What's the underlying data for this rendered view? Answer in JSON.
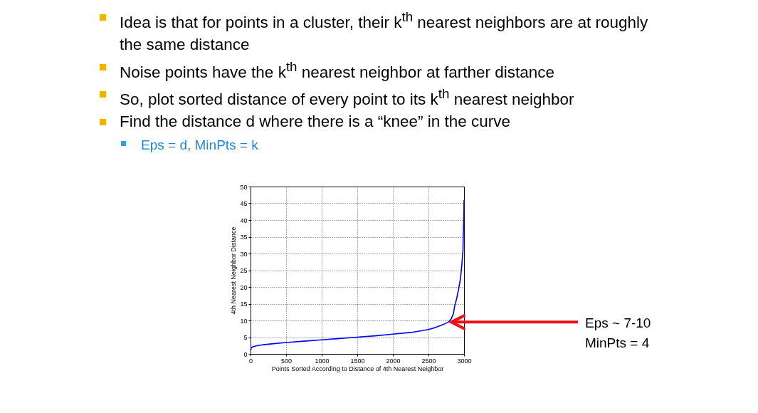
{
  "chart_data": {
    "type": "line",
    "xlabel": "Points Sorted According to Distance of 4th Nearest Neighbor",
    "ylabel": "4th Nearest Neighbor Distance",
    "x": [
      0,
      10,
      30,
      60,
      100,
      200,
      300,
      500,
      750,
      1000,
      1250,
      1500,
      1750,
      2000,
      2250,
      2400,
      2500,
      2600,
      2700,
      2780,
      2820,
      2850,
      2870,
      2890,
      2920,
      2950,
      2970,
      2985,
      2990,
      2995,
      3000
    ],
    "series": [
      {
        "color": "#0000ff",
        "values": [
          1.0,
          1.8,
          2.1,
          2.3,
          2.5,
          2.8,
          3.0,
          3.4,
          3.8,
          4.2,
          4.6,
          5.0,
          5.4,
          5.9,
          6.4,
          6.9,
          7.3,
          7.9,
          8.7,
          9.5,
          10.5,
          12,
          14.5,
          16,
          19,
          22.5,
          27,
          31,
          36,
          40,
          46
        ]
      }
    ],
    "xlim": [
      0,
      3000
    ],
    "xticks": [
      0,
      500,
      1000,
      1500,
      2000,
      2500,
      3000
    ],
    "ylim": [
      0,
      50
    ],
    "yticks": [
      0,
      5,
      10,
      15,
      20,
      25,
      30,
      35,
      40,
      45,
      50
    ],
    "grid": true,
    "marker": "none",
    "line_style": "solid",
    "annotations": [
      "Idea is that for points in a cluster, their k$^{th}$ nearest neighbors are at roughly the same distance",
      "Noise points have the k$^{th}$ nearest neighbor at farther distance",
      "So, plot sorted distance of every point to its k$^{th}$ nearest neighbor",
      "Find the distance d where there is a “knee” in the curve",
      "Eps = d, MinPts = k",
      {
        "text": "Eps ~ 7-10",
        "x": 2780,
        "y": 9.5
      },
      "MinPts = 4"
    ]
  }
}
